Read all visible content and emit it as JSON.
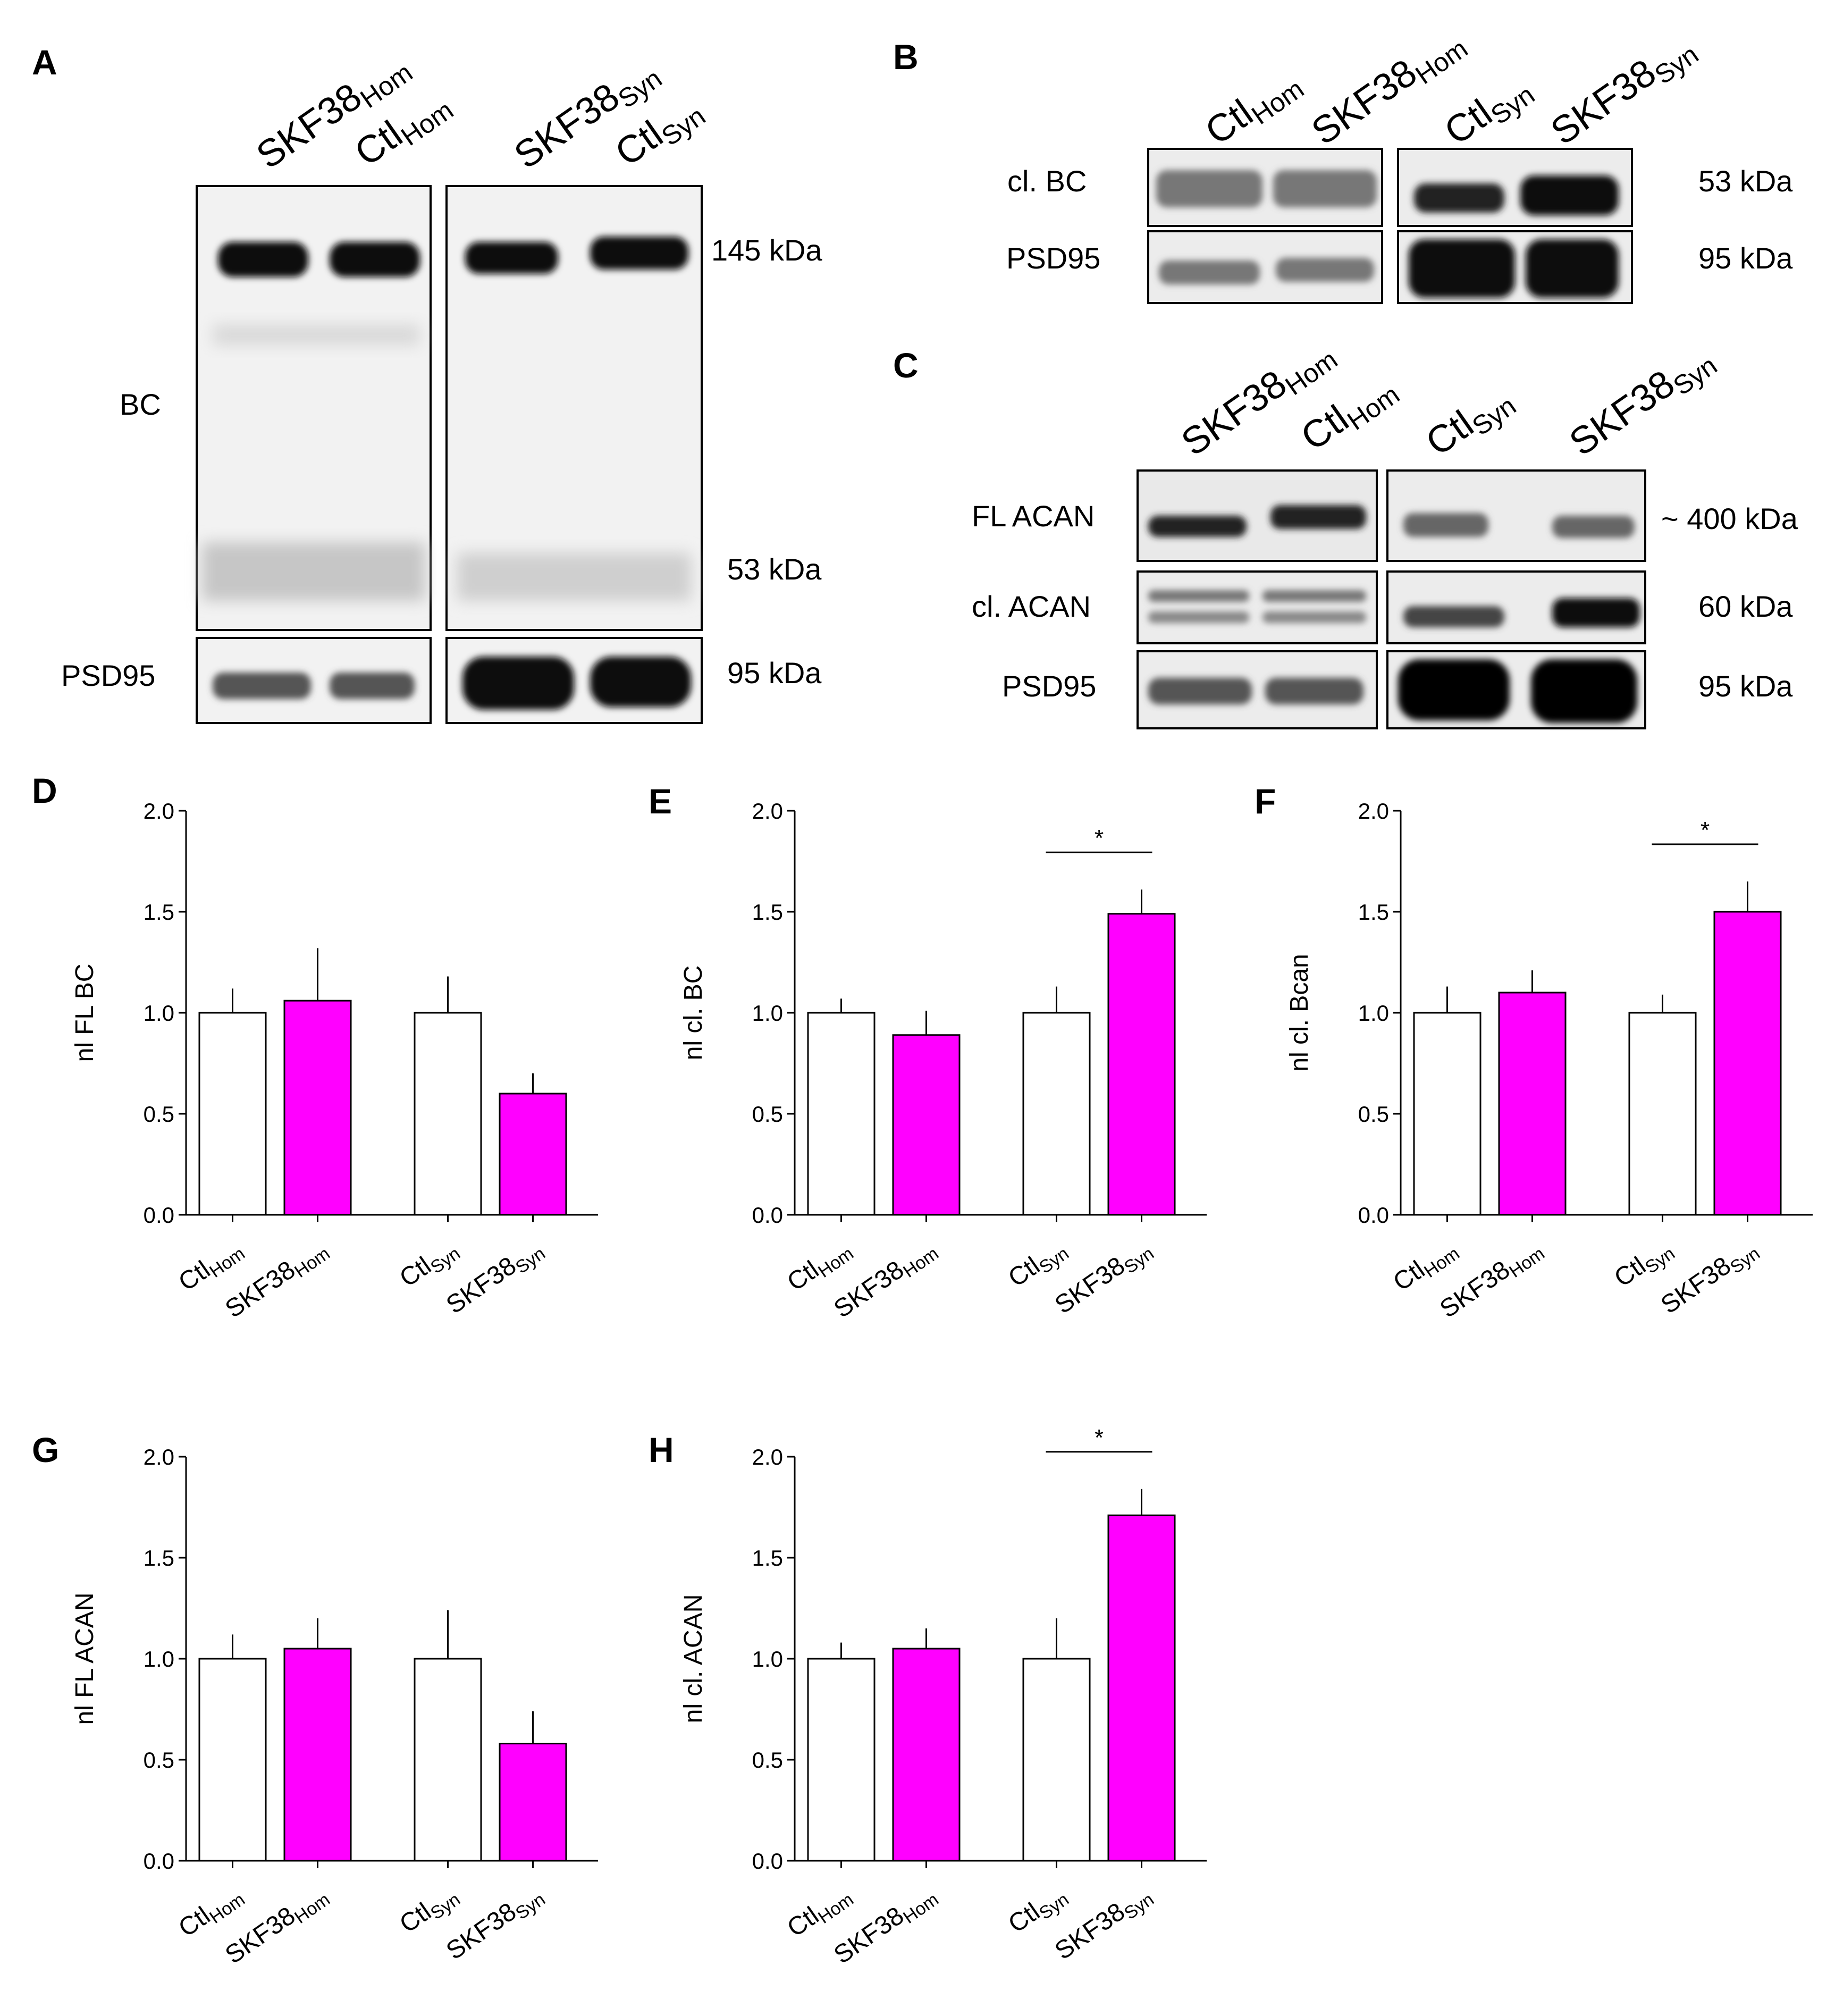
{
  "figure": {
    "panels": {
      "A": {
        "letter": "A",
        "lanes_left": [
          {
            "main": "SKF38",
            "sub": "Hom"
          },
          {
            "main": "Ctl",
            "sub": "Hom"
          }
        ],
        "lanes_right": [
          {
            "main": "SKF38",
            "sub": "Syn"
          },
          {
            "main": "Ctl",
            "sub": "Syn"
          }
        ],
        "row_labels": [
          "BC",
          "PSD95"
        ],
        "size_labels": [
          "145 kDa",
          "53 kDa",
          "95 kDa"
        ]
      },
      "B": {
        "letter": "B",
        "lanes": [
          {
            "main": "Ctl",
            "sub": "Hom"
          },
          {
            "main": "SKF38",
            "sub": "Hom"
          },
          {
            "main": "Ctl",
            "sub": "Syn"
          },
          {
            "main": "SKF38",
            "sub": "Syn"
          }
        ],
        "row_labels": [
          "cl. BC",
          "PSD95"
        ],
        "size_labels": [
          "53 kDa",
          "95 kDa"
        ]
      },
      "C": {
        "letter": "C",
        "lanes": [
          {
            "main": "SKF38",
            "sub": "Hom"
          },
          {
            "main": "Ctl",
            "sub": "Hom"
          },
          {
            "main": "Ctl",
            "sub": "Syn"
          },
          {
            "main": "SKF38",
            "sub": "Syn"
          }
        ],
        "row_labels": [
          "FL ACAN",
          "cl. ACAN",
          "PSD95"
        ],
        "size_labels": [
          "~ 400 kDa",
          "60 kDa",
          "95 kDa"
        ]
      }
    },
    "colors": {
      "control_bar": "#ffffff",
      "treatment_bar": "#ff00ff",
      "band": "#111111",
      "blot_bg": "#f1f1f1"
    }
  },
  "chart_data": [
    {
      "panel": "D",
      "type": "bar",
      "ylabel": "nl FL BC",
      "ylim": [
        0,
        2.0
      ],
      "yticks": [
        "0.0",
        "0.5",
        "1.0",
        "1.5",
        "2.0"
      ],
      "categories": [
        {
          "main": "Ctl",
          "sub": "Hom"
        },
        {
          "main": "SKF38",
          "sub": "Hom"
        },
        {
          "main": "Ctl",
          "sub": "Syn"
        },
        {
          "main": "SKF38",
          "sub": "Syn"
        }
      ],
      "values": [
        1.0,
        1.06,
        1.0,
        0.6
      ],
      "errors": [
        0.12,
        0.26,
        0.18,
        0.1
      ],
      "significance": []
    },
    {
      "panel": "E",
      "type": "bar",
      "ylabel": "nl cl. BC",
      "ylim": [
        0,
        2.0
      ],
      "yticks": [
        "0.0",
        "0.5",
        "1.0",
        "1.5",
        "2.0"
      ],
      "categories": [
        {
          "main": "Ctl",
          "sub": "Hom"
        },
        {
          "main": "SKF38",
          "sub": "Hom"
        },
        {
          "main": "Ctl",
          "sub": "Syn"
        },
        {
          "main": "SKF38",
          "sub": "Syn"
        }
      ],
      "values": [
        1.0,
        0.89,
        1.0,
        1.49
      ],
      "errors": [
        0.07,
        0.12,
        0.13,
        0.12
      ],
      "significance": [
        {
          "from": 2,
          "to": 3,
          "label": "*"
        }
      ]
    },
    {
      "panel": "F",
      "type": "bar",
      "ylabel": "nl cl. Bcan",
      "ylim": [
        0,
        2.0
      ],
      "yticks": [
        "0.0",
        "0.5",
        "1.0",
        "1.5",
        "2.0"
      ],
      "categories": [
        {
          "main": "Ctl",
          "sub": "Hom"
        },
        {
          "main": "SKF38",
          "sub": "Hom"
        },
        {
          "main": "Ctl",
          "sub": "Syn"
        },
        {
          "main": "SKF38",
          "sub": "Syn"
        }
      ],
      "values": [
        1.0,
        1.1,
        1.0,
        1.5
      ],
      "errors": [
        0.13,
        0.11,
        0.09,
        0.15
      ],
      "significance": [
        {
          "from": 2,
          "to": 3,
          "label": "*"
        }
      ]
    },
    {
      "panel": "G",
      "type": "bar",
      "ylabel": "nl FL ACAN",
      "ylim": [
        0,
        2.0
      ],
      "yticks": [
        "0.0",
        "0.5",
        "1.0",
        "1.5",
        "2.0"
      ],
      "categories": [
        {
          "main": "Ctl",
          "sub": "Hom"
        },
        {
          "main": "SKF38",
          "sub": "Hom"
        },
        {
          "main": "Ctl",
          "sub": "Syn"
        },
        {
          "main": "SKF38",
          "sub": "Syn"
        }
      ],
      "values": [
        1.0,
        1.05,
        1.0,
        0.58
      ],
      "errors": [
        0.12,
        0.15,
        0.24,
        0.16
      ],
      "significance": []
    },
    {
      "panel": "H",
      "type": "bar",
      "ylabel": "nl cl. ACAN",
      "ylim": [
        0,
        2.0
      ],
      "yticks": [
        "0.0",
        "0.5",
        "1.0",
        "1.5",
        "2.0"
      ],
      "categories": [
        {
          "main": "Ctl",
          "sub": "Hom"
        },
        {
          "main": "SKF38",
          "sub": "Hom"
        },
        {
          "main": "Ctl",
          "sub": "Syn"
        },
        {
          "main": "SKF38",
          "sub": "Syn"
        }
      ],
      "values": [
        1.0,
        1.05,
        1.0,
        1.71
      ],
      "errors": [
        0.08,
        0.1,
        0.2,
        0.13
      ],
      "significance": [
        {
          "from": 2,
          "to": 3,
          "label": "*"
        }
      ]
    }
  ]
}
